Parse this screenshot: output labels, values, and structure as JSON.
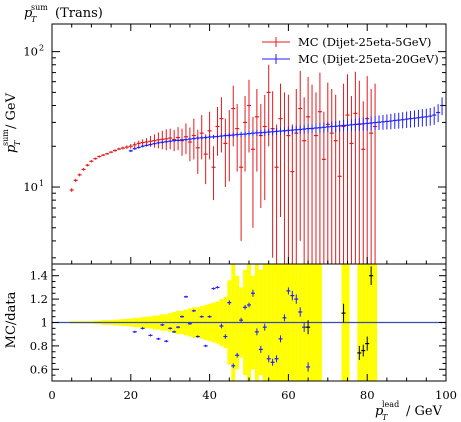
{
  "title": "p_T^sum (Trans)",
  "title_main": "p",
  "title_sub": "T",
  "title_sup": "sum",
  "title_rest": "(Trans)",
  "y_label_main": "p",
  "y_label_sub": "T",
  "y_label_sup": "sum",
  "y_label_rest": "/ GeV",
  "x_label_main": "p",
  "x_label_sub": "T",
  "x_label_sup": "lead",
  "x_label_rest": "/ GeV",
  "ratio_ylabel": "MC/data",
  "colors": {
    "red": "#e41a1c",
    "blue": "#1f1fff",
    "band": "#ffff00",
    "data": "#000000"
  },
  "chart_data": {
    "type": "scatter",
    "title": "p_T^sum (Trans)",
    "xlabel": "p_T^lead / GeV",
    "ylabel": "p_T^sum / GeV",
    "xlim": [
      0,
      100
    ],
    "ylim": [
      2.7,
      160
    ],
    "yscale": "log",
    "legend_position": "top-right",
    "x_ticks": [
      0,
      20,
      40,
      60,
      80,
      100
    ],
    "y_ticks": [
      {
        "v": 10,
        "label": "10",
        "sup": "1"
      },
      {
        "v": 100,
        "label": "10",
        "sup": "2"
      }
    ],
    "series": [
      {
        "name": "MC (Dijet-25eta-5GeV)",
        "color": "red",
        "x": [
          5,
          6,
          7,
          8,
          9,
          10,
          11,
          12,
          13,
          14,
          15,
          16,
          17,
          18,
          19,
          20,
          21,
          22,
          23,
          24,
          25,
          26,
          27,
          28,
          29,
          30,
          31,
          32,
          33,
          34,
          35,
          36,
          37,
          38,
          39,
          40,
          41,
          42,
          43,
          44,
          45,
          46,
          47,
          48,
          49,
          50,
          51,
          52,
          53,
          54,
          55,
          56,
          57,
          58,
          59,
          60,
          61,
          62,
          63,
          64,
          65,
          66,
          67,
          68,
          69,
          70,
          71,
          72,
          73,
          74,
          75,
          76,
          77,
          78,
          79,
          80,
          81,
          82
        ],
        "y": [
          9.5,
          11.2,
          12.3,
          13.5,
          14.5,
          15.5,
          16.2,
          16.8,
          17.2,
          17.6,
          18.1,
          18.6,
          19.1,
          19.4,
          19.7,
          20,
          20.5,
          21,
          21.3,
          21.5,
          21.8,
          22,
          22.3,
          22.5,
          22.7,
          23,
          22.4,
          23.2,
          22,
          23.5,
          21.5,
          24,
          19.5,
          25,
          17.5,
          26,
          14,
          28,
          32,
          21,
          24,
          38,
          27,
          14,
          30,
          40,
          19,
          33,
          24,
          28,
          50,
          27,
          14,
          32,
          26,
          24,
          13,
          25,
          38,
          22,
          33,
          27,
          24,
          36,
          16,
          29,
          25,
          22,
          12,
          28,
          34,
          21,
          35,
          29,
          19,
          32,
          25,
          28
        ],
        "err": [
          0.3,
          0.3,
          0.3,
          0.3,
          0.3,
          0.3,
          0.3,
          0.3,
          0.3,
          0.3,
          0.3,
          0.4,
          0.4,
          0.5,
          0.6,
          0.8,
          1,
          1,
          1.2,
          1.5,
          2,
          2.5,
          3,
          3.5,
          4,
          4,
          4,
          4.5,
          5,
          6,
          6,
          8,
          7,
          9,
          7,
          10,
          6,
          11,
          14,
          11,
          13,
          18,
          14,
          10,
          17,
          22,
          14,
          20,
          17,
          20,
          30,
          24,
          15,
          26,
          24,
          24,
          16,
          28,
          34,
          24,
          32,
          30,
          26,
          34,
          20,
          30,
          28,
          26,
          16,
          30,
          34,
          26,
          36,
          32,
          24,
          34,
          28,
          30
        ]
      },
      {
        "name": "MC (Dijet-25eta-20GeV)",
        "color": "blue",
        "x": [
          20,
          21,
          22,
          23,
          24,
          25,
          26,
          27,
          28,
          29,
          30,
          31,
          32,
          33,
          34,
          35,
          36,
          37,
          38,
          39,
          40,
          41,
          42,
          43,
          44,
          45,
          46,
          47,
          48,
          49,
          50,
          51,
          52,
          53,
          54,
          55,
          56,
          57,
          58,
          59,
          60,
          61,
          62,
          63,
          64,
          65,
          66,
          67,
          68,
          69,
          70,
          71,
          72,
          73,
          74,
          75,
          76,
          77,
          78,
          79,
          80,
          81,
          82,
          83,
          84,
          85,
          86,
          87,
          88,
          89,
          90,
          91,
          92,
          93,
          94,
          95,
          96,
          97,
          98,
          99
        ],
        "y": [
          18.5,
          19.2,
          19.6,
          20,
          20.3,
          20.6,
          20.9,
          21.2,
          21.4,
          21.6,
          21.8,
          22,
          22.1,
          22.3,
          22.4,
          22.6,
          22.8,
          23,
          23.1,
          23.2,
          23.4,
          23.5,
          23.6,
          23.8,
          24,
          24.1,
          24.2,
          24.4,
          24.5,
          24.6,
          24.8,
          25,
          25.1,
          25.2,
          25.3,
          25.5,
          25.6,
          25.8,
          25.9,
          26,
          26.2,
          26.3,
          26.5,
          26.6,
          26.8,
          27,
          27.1,
          27.3,
          27.4,
          27.6,
          27.8,
          28,
          28.1,
          28.3,
          28.5,
          28.6,
          28.8,
          29,
          29.2,
          29.3,
          29.5,
          29.7,
          29.9,
          30.1,
          30.3,
          30.5,
          30.7,
          31,
          31.2,
          31.4,
          31.7,
          32,
          32.2,
          32.5,
          32.8,
          33,
          33.4,
          34,
          35.5,
          40
        ],
        "err": [
          0.4,
          0.4,
          0.4,
          0.4,
          0.4,
          0.4,
          0.4,
          0.4,
          0.5,
          0.5,
          0.5,
          0.5,
          0.5,
          0.6,
          0.6,
          0.6,
          0.6,
          0.7,
          0.7,
          0.7,
          0.8,
          0.8,
          0.8,
          0.9,
          0.9,
          1,
          1,
          1,
          1.1,
          1.1,
          1.2,
          1.2,
          1.3,
          1.3,
          1.4,
          1.4,
          1.5,
          1.5,
          1.6,
          1.6,
          1.7,
          1.8,
          1.8,
          1.9,
          2,
          2,
          2.1,
          2.2,
          2.3,
          2.4,
          2.4,
          2.5,
          2.6,
          2.7,
          2.8,
          2.9,
          3,
          3.1,
          3.2,
          3.3,
          3.4,
          3.5,
          3.6,
          3.7,
          3.8,
          3.9,
          4,
          4.1,
          4.2,
          4.3,
          4.4,
          4.5,
          4.6,
          4.7,
          4.8,
          4.9,
          5,
          5.2,
          5.4,
          6
        ]
      }
    ],
    "ratio": {
      "ylabel": "MC/data",
      "ylim": [
        0.5,
        1.5
      ],
      "ticks": [
        0.6,
        0.8,
        1,
        1.2,
        1.4
      ],
      "reference": 1,
      "band": {
        "x": [
          5,
          6,
          7,
          8,
          9,
          10,
          11,
          12,
          13,
          14,
          15,
          16,
          17,
          18,
          19,
          20,
          21,
          22,
          23,
          24,
          25,
          26,
          27,
          28,
          29,
          30,
          31,
          32,
          33,
          34,
          35,
          36,
          37,
          38,
          39,
          40,
          41,
          42,
          43,
          44,
          45,
          46,
          47,
          48,
          49,
          50,
          51,
          52,
          53,
          54,
          55,
          56,
          57,
          58,
          59,
          60,
          61,
          62,
          63,
          64,
          65,
          66,
          67,
          68,
          69,
          70,
          71,
          72,
          73,
          74,
          75,
          76,
          77,
          78,
          79,
          80,
          81,
          82
        ],
        "halfwidth": [
          0.01,
          0.01,
          0.01,
          0.01,
          0.01,
          0.01,
          0.015,
          0.015,
          0.02,
          0.02,
          0.02,
          0.025,
          0.025,
          0.03,
          0.03,
          0.035,
          0.04,
          0.04,
          0.045,
          0.05,
          0.05,
          0.06,
          0.06,
          0.07,
          0.07,
          0.08,
          0.09,
          0.1,
          0.1,
          0.11,
          0.12,
          0.13,
          0.13,
          0.14,
          0.15,
          0.16,
          0.17,
          0.18,
          0.2,
          0.22,
          0.36,
          0.5,
          0.4,
          0.3,
          0.45,
          0.5,
          0.4,
          0.5,
          0.45,
          0.5,
          0.5,
          0.5,
          0.5,
          0.5,
          0.5,
          0.5,
          0.5,
          0.5,
          0.5,
          0.5,
          0.5,
          0.5,
          0.5,
          0.5,
          0,
          0,
          0,
          0,
          0,
          0.5,
          0.5,
          0,
          0,
          0.5,
          0.5,
          0.5,
          0.5,
          0.5
        ]
      },
      "data_points": {
        "x": [
          65,
          74,
          78,
          79,
          80,
          81
        ],
        "y": [
          0.96,
          1.08,
          0.74,
          0.76,
          0.82,
          1.4
        ],
        "err": [
          0.06,
          0.08,
          0.06,
          0.05,
          0.06,
          0.08
        ]
      },
      "blue_points": {
        "x": [
          21,
          23,
          25,
          27,
          28,
          29,
          30,
          31,
          32,
          33,
          34,
          35,
          36,
          37,
          38,
          39,
          40,
          41,
          42,
          43,
          44,
          45,
          46,
          47,
          48,
          49,
          50,
          51,
          52,
          53,
          54,
          55,
          56,
          57,
          58,
          59,
          60,
          61,
          62,
          63,
          64,
          65
        ],
        "y": [
          0.92,
          0.95,
          0.89,
          0.86,
          0.98,
          0.84,
          0.95,
          0.92,
          0.96,
          1.05,
          1.22,
          0.99,
          1.1,
          0.88,
          1.05,
          0.8,
          1.05,
          1.29,
          1.3,
          0.97,
          0.88,
          1.17,
          0.63,
          0.72,
          1.02,
          1.13,
          1.15,
          1.25,
          0.92,
          0.77,
          0.96,
          0.69,
          0.66,
          0.69,
          0.86,
          1.04,
          1.27,
          1.23,
          1.2,
          1.09,
          0.96,
          0.62
        ],
        "err": [
          0.01,
          0.01,
          0.01,
          0.01,
          0.01,
          0.01,
          0.01,
          0.01,
          0.01,
          0.01,
          0.01,
          0.01,
          0.01,
          0.01,
          0.01,
          0.01,
          0.01,
          0.01,
          0.01,
          0.02,
          0.02,
          0.02,
          0.02,
          0.02,
          0.02,
          0.02,
          0.02,
          0.03,
          0.03,
          0.03,
          0.03,
          0.03,
          0.03,
          0.03,
          0.03,
          0.03,
          0.03,
          0.04,
          0.04,
          0.04,
          0.04,
          0.04
        ]
      }
    }
  }
}
